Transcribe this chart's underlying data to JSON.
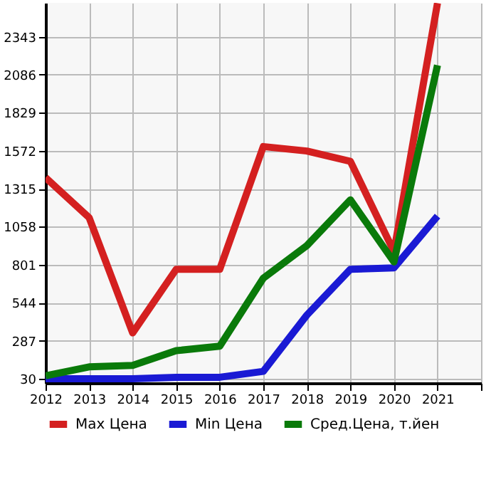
{
  "chart_data": {
    "type": "line",
    "x": [
      2012,
      2013,
      2014,
      2015,
      2016,
      2017,
      2018,
      2019,
      2020,
      2021
    ],
    "series": [
      {
        "name": "Max Цена",
        "color": "#d42020",
        "values": [
          1390,
          1120,
          340,
          770,
          770,
          1600,
          1570,
          1500,
          890,
          2570
        ]
      },
      {
        "name": "Min Цена",
        "color": "#1a1ad4",
        "values": [
          30,
          30,
          30,
          40,
          40,
          80,
          460,
          770,
          780,
          1130
        ]
      },
      {
        "name": "Сред.Цена, т.йен",
        "color": "#0a7a0a",
        "values": [
          50,
          110,
          120,
          220,
          250,
          710,
          930,
          1240,
          820,
          2150
        ]
      }
    ],
    "xlim": [
      2012,
      2022
    ],
    "xticks": [
      2012,
      2013,
      2014,
      2015,
      2016,
      2017,
      2018,
      2019,
      2020,
      2021,
      {
        "value": 2022,
        "label": null
      }
    ],
    "ylim": [
      1,
      2572
    ],
    "yticks": [
      30,
      287,
      544,
      801,
      1058,
      1315,
      1572,
      1829,
      2086,
      2343
    ],
    "grid": true,
    "legend": "bottom",
    "marker": "none",
    "line_style": "solid"
  }
}
